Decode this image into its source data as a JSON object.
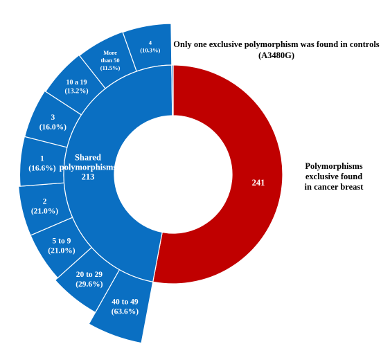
{
  "chart_data": {
    "type": "sunburst",
    "title": "",
    "inner": [
      {
        "label": "Shared polymorphisms",
        "value": 213,
        "lines": [
          "Shared",
          "polymorphisms",
          "213"
        ],
        "color": "#0a6fc2"
      },
      {
        "label": "Polymorphisms exclusive found in cancer breast",
        "value": 241,
        "lines": [
          "241"
        ],
        "color": "#c00000"
      },
      {
        "label": "Only one exclusive polymorphism was found in controls (A3480G)",
        "value": 1,
        "lines": [],
        "color": "#0a6fc2"
      }
    ],
    "outer_parent": "Shared polymorphisms",
    "outer": [
      {
        "category": "40 to 49",
        "percent": "63.6%",
        "lines": [
          "40 to 49",
          "(63.6%)"
        ]
      },
      {
        "category": "20 to 29",
        "percent": "29.6%",
        "lines": [
          "20 to 29",
          "(29.6%)"
        ]
      },
      {
        "category": "5 to 9",
        "percent": "21.0%",
        "lines": [
          "5 to 9",
          "(21.0%)"
        ]
      },
      {
        "category": "2",
        "percent": "21.0%",
        "lines": [
          "2",
          "(21.0%)"
        ]
      },
      {
        "category": "1",
        "percent": "16.6%",
        "lines": [
          "1",
          "(16.6%)"
        ]
      },
      {
        "category": "3",
        "percent": "16.0%",
        "lines": [
          "3",
          "(16.0%)"
        ]
      },
      {
        "category": "10 a 19",
        "percent": "13.2%",
        "lines": [
          "10 a 19",
          "(13.2%)"
        ]
      },
      {
        "category": "More than 50",
        "percent": "11.5%",
        "lines": [
          "More",
          "than 50",
          "(11.5%)"
        ]
      },
      {
        "category": "4",
        "percent": "10.3%",
        "lines": [
          "4",
          "(10.3%)"
        ]
      }
    ],
    "outer_color": "#0a6fc2",
    "annotations": {
      "controls": [
        "Only one exclusive polymorphism was found in controls",
        "(A3480G)"
      ],
      "cancer": [
        "Polymorphisms",
        "exclusive found",
        "in cancer breast"
      ]
    }
  }
}
